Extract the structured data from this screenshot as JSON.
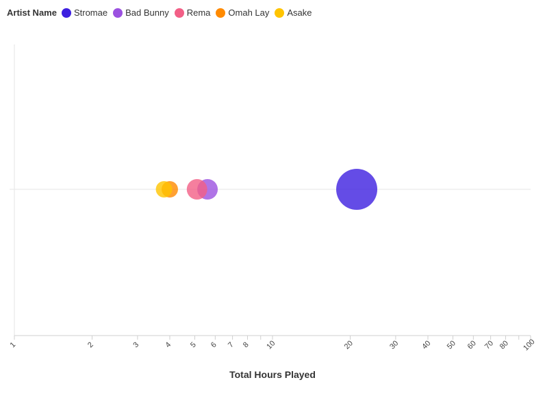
{
  "legend": {
    "title": "Artist Name"
  },
  "chart_data": {
    "type": "scatter",
    "subtype": "bubble",
    "x_scale": "log",
    "xlim": [
      1,
      100
    ],
    "xlabel": "Total Hours Played",
    "ylabel": "",
    "legend_position": "top-left",
    "grid": false,
    "x_ticks": [
      1,
      2,
      3,
      4,
      5,
      6,
      7,
      8,
      9,
      10,
      20,
      30,
      40,
      50,
      60,
      70,
      80,
      90,
      100
    ],
    "x_tick_labels": [
      "1",
      "2",
      "3",
      "4",
      "5",
      "6",
      "7",
      "8",
      "",
      "10",
      "20",
      "30",
      "40",
      "50",
      "60",
      "70",
      "80",
      "",
      "100"
    ],
    "series": [
      {
        "name": "Stromae",
        "x": 21.2,
        "size": 30,
        "color": "#3d1fe0"
      },
      {
        "name": "Bad Bunny",
        "x": 5.6,
        "size": 15,
        "color": "#9b51e0"
      },
      {
        "name": "Rema",
        "x": 5.1,
        "size": 15,
        "color": "#f25f86"
      },
      {
        "name": "Omah Lay",
        "x": 4.0,
        "size": 12,
        "color": "#ff8a00"
      },
      {
        "name": "Asake",
        "x": 3.8,
        "size": 12,
        "color": "#ffc400"
      }
    ]
  }
}
